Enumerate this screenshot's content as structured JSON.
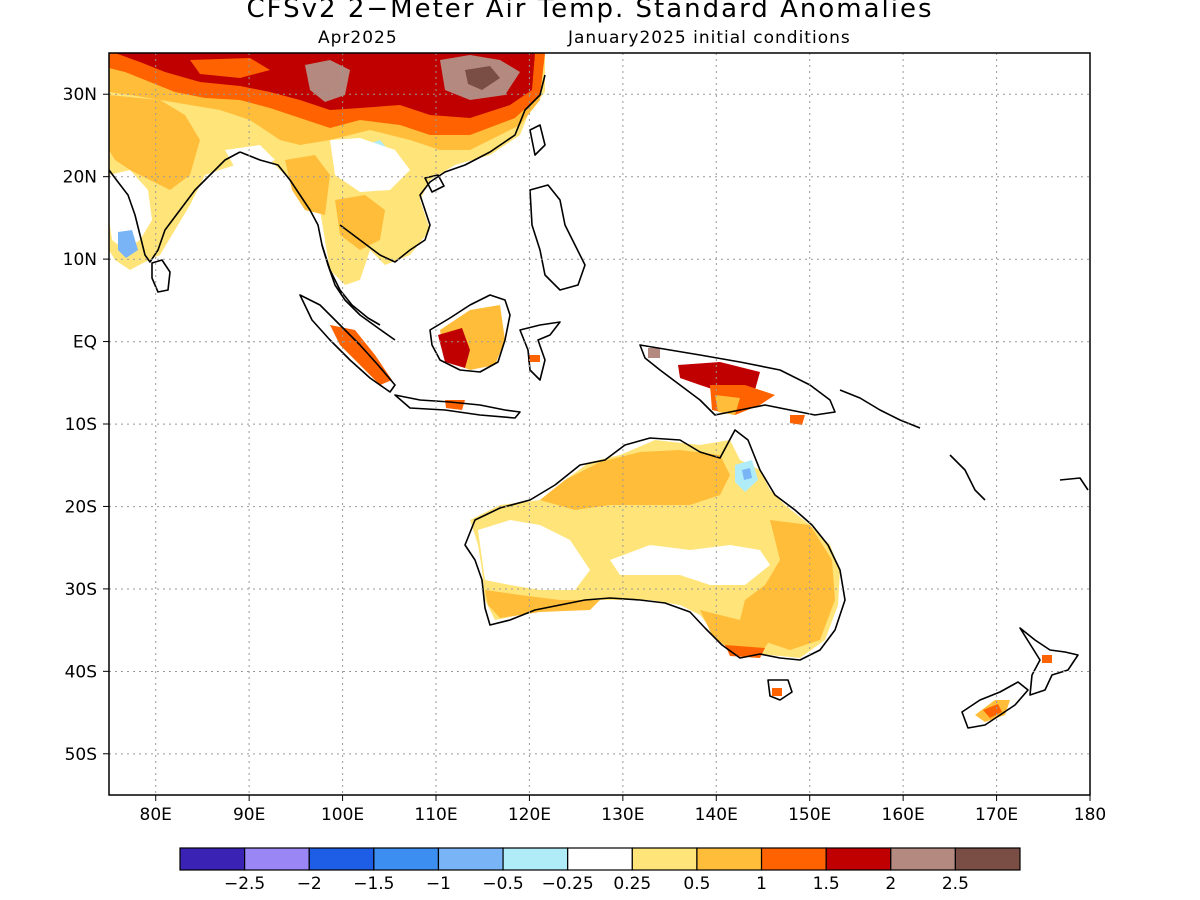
{
  "title": "CFSv2 2−Meter Air Temp. Standard Anomalies",
  "subtitle_left": "Apr2025",
  "subtitle_right": "January2025 initial conditions",
  "map": {
    "lon_range": [
      75,
      180
    ],
    "lat_range": [
      -55,
      35
    ],
    "lon_ticks": [
      "80E",
      "90E",
      "100E",
      "110E",
      "120E",
      "130E",
      "140E",
      "150E",
      "160E",
      "170E",
      "180"
    ],
    "lat_ticks": [
      "30N",
      "20N",
      "10N",
      "EQ",
      "10S",
      "20S",
      "30S",
      "40S",
      "50S"
    ],
    "grid": "dotted"
  },
  "colorbar": {
    "colors": [
      "#3a22b4",
      "#9b86f5",
      "#1e5ee6",
      "#3c8ef0",
      "#78b4f6",
      "#b0ecf8",
      "#ffffff",
      "#ffe47a",
      "#ffbd3a",
      "#ff6200",
      "#c00000",
      "#b48a80",
      "#7a4e44"
    ],
    "labels": [
      "−2.5",
      "−2",
      "−1.5",
      "−1",
      "−0.5",
      "−0.25",
      "0.25",
      "0.5",
      "1",
      "1.5",
      "2",
      "2.5"
    ]
  }
}
